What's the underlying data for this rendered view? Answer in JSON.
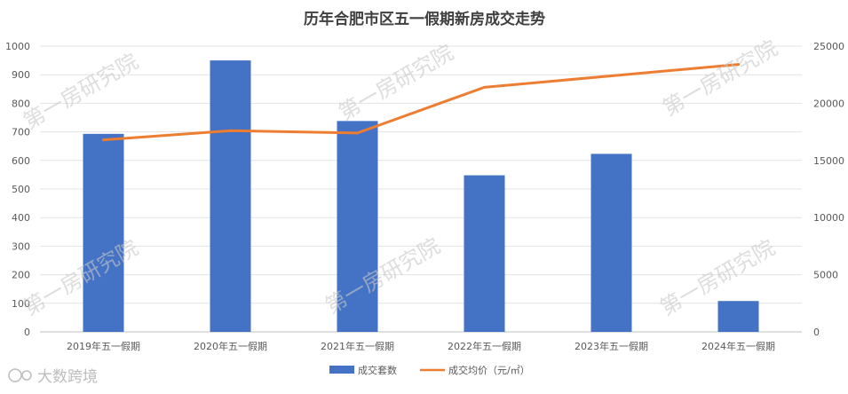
{
  "chart_data": {
    "type": "bar",
    "title": "历年合肥市区五一假期新房成交走势",
    "categories": [
      "2019年五一假期",
      "2020年五一假期",
      "2021年五一假期",
      "2022年五一假期",
      "2023年五一假期",
      "2024年五一假期"
    ],
    "series": [
      {
        "name": "成交套数",
        "type": "bar",
        "axis": "left",
        "color": "#4472C4",
        "values": [
          693,
          950,
          738,
          548,
          623,
          108
        ]
      },
      {
        "name": "成交均价（元/㎡）",
        "type": "line",
        "axis": "right",
        "color": "#ED7D31",
        "values": [
          16800,
          17600,
          17400,
          21400,
          22400,
          23400
        ]
      }
    ],
    "y_left": {
      "min": 0,
      "max": 1000,
      "ticks": [
        0,
        100,
        200,
        300,
        400,
        500,
        600,
        700,
        800,
        900,
        1000
      ]
    },
    "y_right": {
      "min": 0,
      "max": 25000,
      "ticks": [
        0,
        5000,
        10000,
        15000,
        20000,
        25000
      ]
    },
    "grid": true,
    "legend": "bottom"
  },
  "watermark": "第一房研究院",
  "brand": "大数跨境"
}
